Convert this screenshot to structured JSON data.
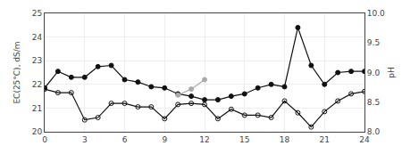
{
  "chart_data": {
    "type": "line",
    "x": [
      0,
      1,
      2,
      3,
      4,
      5,
      6,
      7,
      8,
      9,
      10,
      11,
      12,
      13,
      14,
      15,
      16,
      17,
      18,
      19,
      20,
      21,
      22,
      23,
      24
    ],
    "series": [
      {
        "color": "#111111",
        "marker": "circle",
        "values": [
          21.85,
          22.55,
          22.3,
          22.3,
          22.75,
          22.8,
          22.2,
          22.1,
          21.9,
          21.85,
          21.6,
          21.5,
          21.35,
          21.35,
          21.5,
          21.6,
          21.85,
          22.0,
          21.9,
          24.4,
          22.8,
          22.0,
          22.5,
          22.55,
          22.55
        ]
      },
      {
        "color": "#111111",
        "marker": "circle-open",
        "values": [
          21.8,
          21.65,
          21.65,
          20.5,
          20.6,
          21.2,
          21.2,
          21.05,
          21.05,
          20.55,
          21.15,
          21.2,
          21.15,
          20.55,
          20.95,
          20.7,
          20.7,
          20.6,
          21.3,
          20.8,
          20.2,
          20.85,
          21.3,
          21.6,
          21.7
        ]
      },
      {
        "color": "#aaaaaa",
        "marker": "circle",
        "x": [
          10,
          11,
          12
        ],
        "values": [
          21.55,
          21.8,
          22.2
        ]
      }
    ],
    "xlim": [
      0,
      24
    ],
    "xticks": [
      0,
      3,
      6,
      9,
      12,
      15,
      18,
      21,
      24
    ],
    "ylim": [
      20,
      25
    ],
    "yticks": [
      20,
      21,
      22,
      23,
      24,
      25
    ],
    "y2lim": [
      8,
      10
    ],
    "y2ticks": [
      {
        "value": 8,
        "label": "8.0"
      },
      8.5,
      {
        "value": 9,
        "label": "9.0"
      },
      9.5,
      {
        "value": 10,
        "label": "10.0"
      }
    ],
    "y_label": "EC(25°C), dS/m",
    "y2_label": "pH",
    "grid": true
  }
}
